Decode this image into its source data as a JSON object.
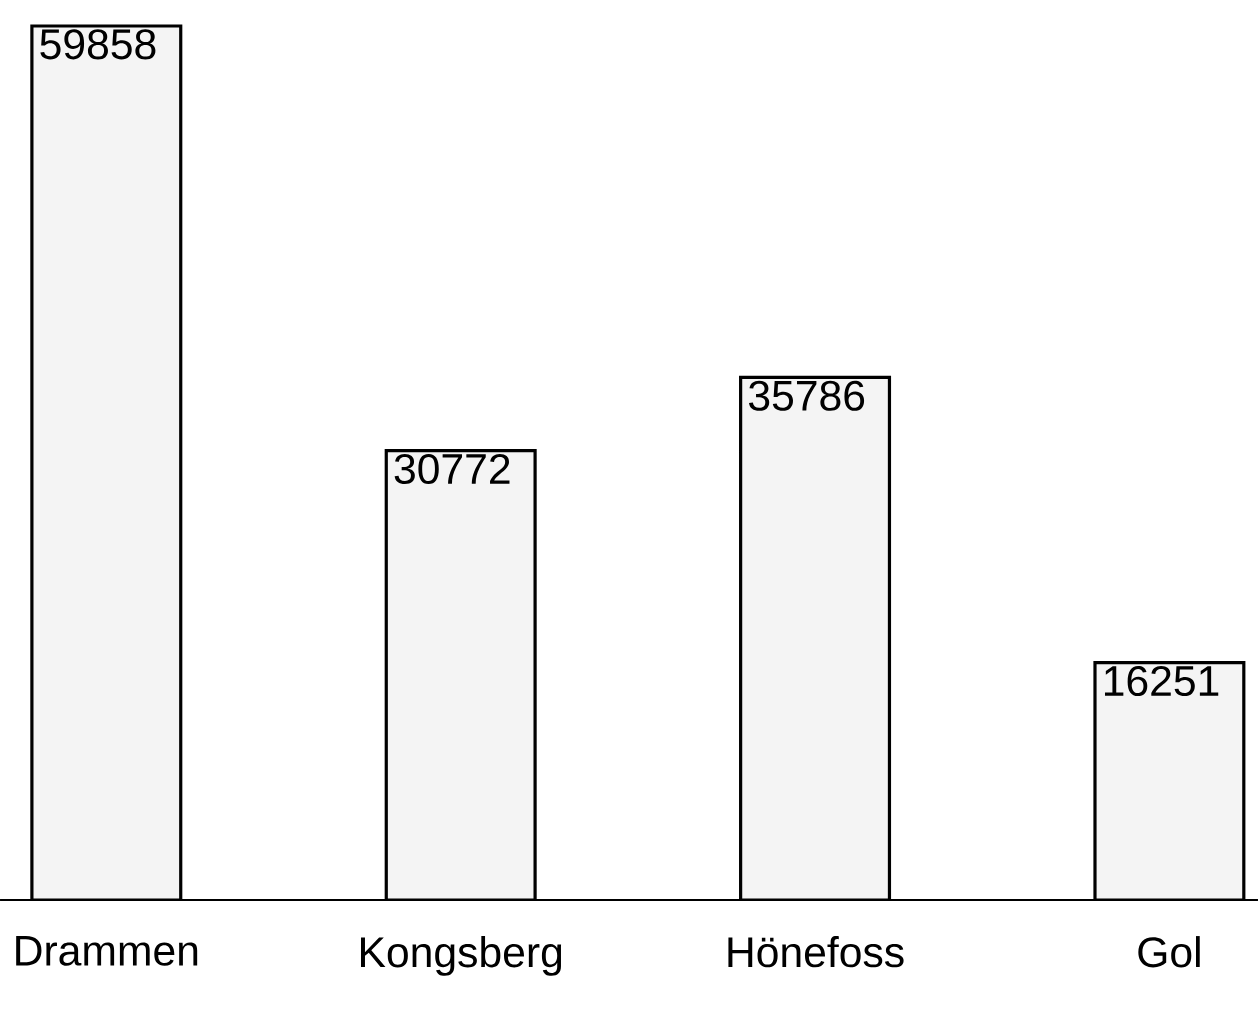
{
  "chart_data": {
    "type": "bar",
    "categories": [
      "Drammen",
      "Kongsberg",
      "Hönefoss",
      "Gol"
    ],
    "values": [
      59858,
      30772,
      35786,
      16251
    ],
    "color": "#f4f4f4",
    "data_labels": true
  }
}
